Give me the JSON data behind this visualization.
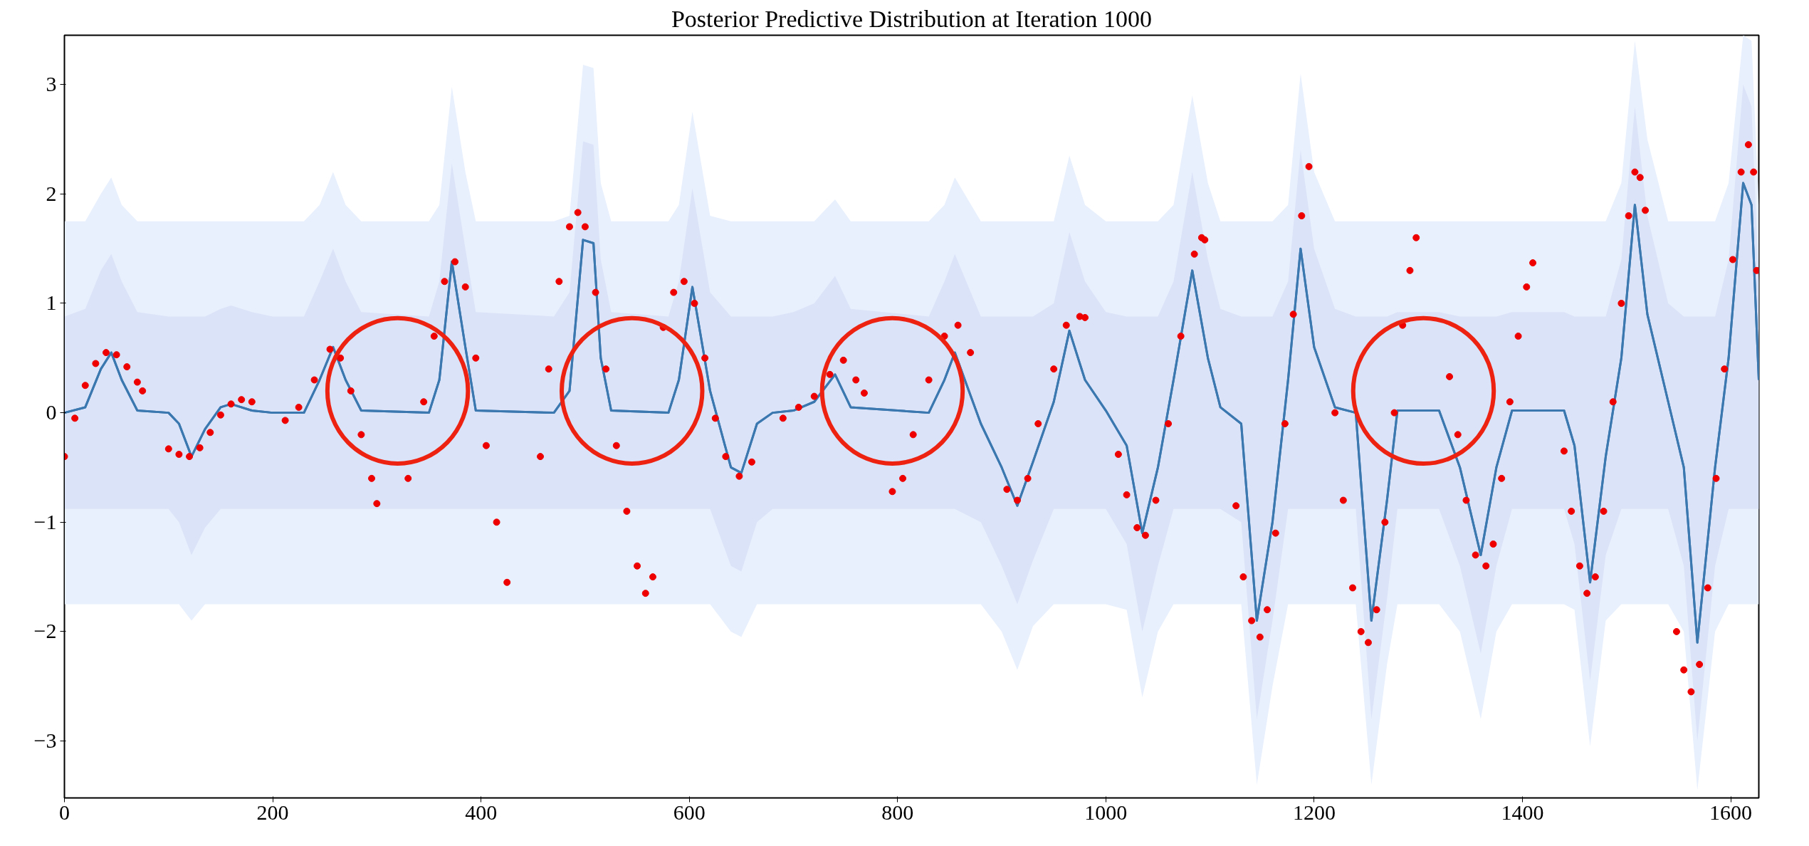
{
  "chart_data": {
    "type": "line",
    "title": "Posterior Predictive Distribution at Iteration 1000",
    "xlim": [
      0,
      1627
    ],
    "ylim": [
      -3.52,
      3.45
    ],
    "xticks": [
      0,
      200,
      400,
      600,
      800,
      1000,
      1200,
      1400,
      1600
    ],
    "yticks": [
      -3,
      -2,
      -1,
      0,
      1,
      2,
      3
    ],
    "grid": false,
    "x": [
      0,
      20,
      35,
      45,
      55,
      70,
      100,
      110,
      122,
      135,
      150,
      160,
      180,
      200,
      230,
      245,
      258,
      270,
      285,
      350,
      360,
      372,
      385,
      395,
      470,
      485,
      498,
      508,
      515,
      525,
      580,
      590,
      603,
      620,
      640,
      650,
      665,
      680,
      700,
      720,
      740,
      755,
      830,
      845,
      855,
      880,
      900,
      915,
      930,
      950,
      965,
      980,
      1000,
      1020,
      1035,
      1050,
      1065,
      1083,
      1098,
      1110,
      1130,
      1145,
      1160,
      1175,
      1187,
      1200,
      1220,
      1240,
      1255,
      1270,
      1280,
      1320,
      1340,
      1360,
      1375,
      1390,
      1440,
      1450,
      1465,
      1480,
      1495,
      1508,
      1520,
      1540,
      1555,
      1568,
      1585,
      1598,
      1612,
      1620,
      1627
    ],
    "series": [
      {
        "color": "#3b78b0",
        "values": [
          0,
          0.05,
          0.4,
          0.55,
          0.3,
          0.02,
          0,
          -0.1,
          -0.4,
          -0.15,
          0.05,
          0.08,
          0.02,
          0,
          0,
          0.3,
          0.6,
          0.3,
          0.02,
          0,
          0.3,
          1.38,
          0.6,
          0.02,
          0,
          0.2,
          1.58,
          1.55,
          0.5,
          0.02,
          0,
          0.3,
          1.15,
          0.2,
          -0.5,
          -0.55,
          -0.1,
          0,
          0.02,
          0.1,
          0.35,
          0.05,
          0,
          0.3,
          0.55,
          -0.1,
          -0.5,
          -0.85,
          -0.45,
          0.1,
          0.75,
          0.3,
          0.02,
          -0.3,
          -1.1,
          -0.5,
          0.3,
          1.3,
          0.5,
          0.05,
          -0.1,
          -1.9,
          -1.0,
          0.3,
          1.5,
          0.6,
          0.05,
          0,
          -1.9,
          -0.8,
          0.02,
          0.02,
          -0.5,
          -1.3,
          -0.5,
          0.02,
          0.02,
          -0.3,
          -1.55,
          -0.4,
          0.5,
          1.9,
          0.9,
          0.1,
          -0.5,
          -2.1,
          -0.5,
          0.5,
          2.1,
          1.9,
          0.3
        ],
        "lower": [
          -1.75,
          -1.75,
          -1.75,
          -1.75,
          -1.75,
          -1.75,
          -1.75,
          -1.75,
          -1.9,
          -1.75,
          -1.75,
          -1.75,
          -1.75,
          -1.75,
          -1.75,
          -1.75,
          -1.75,
          -1.75,
          -1.75,
          -1.75,
          -1.75,
          -1.75,
          -1.75,
          -1.75,
          -1.75,
          -1.75,
          -1.75,
          -1.75,
          -1.75,
          -1.75,
          -1.75,
          -1.75,
          -1.75,
          -1.75,
          -2.0,
          -2.05,
          -1.75,
          -1.75,
          -1.75,
          -1.75,
          -1.75,
          -1.75,
          -1.75,
          -1.75,
          -1.75,
          -1.75,
          -2.0,
          -2.35,
          -1.95,
          -1.75,
          -1.75,
          -1.75,
          -1.75,
          -1.8,
          -2.6,
          -2.0,
          -1.75,
          -1.75,
          -1.75,
          -1.75,
          -1.75,
          -3.4,
          -2.5,
          -1.75,
          -1.75,
          -1.75,
          -1.75,
          -1.75,
          -3.4,
          -2.3,
          -1.75,
          -1.75,
          -2.0,
          -2.8,
          -2.0,
          -1.75,
          -1.75,
          -1.8,
          -3.05,
          -1.9,
          -1.75,
          -1.75,
          -1.75,
          -1.75,
          -2.0,
          -3.45,
          -2.0,
          -1.75,
          -1.75,
          -1.75,
          -1.75
        ],
        "upper": [
          1.75,
          1.75,
          2.0,
          2.15,
          1.9,
          1.75,
          1.75,
          1.75,
          1.75,
          1.75,
          1.75,
          1.75,
          1.75,
          1.75,
          1.75,
          1.9,
          2.2,
          1.9,
          1.75,
          1.75,
          1.9,
          2.98,
          2.2,
          1.75,
          1.75,
          1.8,
          3.18,
          3.15,
          2.1,
          1.75,
          1.75,
          1.9,
          2.75,
          1.8,
          1.75,
          1.75,
          1.75,
          1.75,
          1.75,
          1.75,
          1.95,
          1.75,
          1.75,
          1.9,
          2.15,
          1.75,
          1.75,
          1.75,
          1.75,
          1.75,
          2.35,
          1.9,
          1.75,
          1.75,
          1.75,
          1.75,
          1.9,
          2.9,
          2.1,
          1.75,
          1.75,
          1.75,
          1.75,
          1.9,
          3.1,
          2.2,
          1.75,
          1.75,
          1.75,
          1.75,
          1.75,
          1.75,
          1.75,
          1.75,
          1.75,
          1.75,
          1.75,
          1.75,
          1.75,
          1.75,
          2.1,
          3.4,
          2.5,
          1.75,
          1.75,
          1.75,
          1.75,
          2.1,
          3.45,
          3.4,
          1.9
        ]
      },
      {
        "color": "#3b78b0",
        "values": [
          0,
          0.05,
          0.4,
          0.55,
          0.3,
          0.02,
          0,
          -0.1,
          -0.4,
          -0.15,
          0.05,
          0.08,
          0.02,
          0,
          0,
          0.3,
          0.6,
          0.3,
          0.02,
          0,
          0.3,
          1.38,
          0.6,
          0.02,
          0,
          0.2,
          1.58,
          1.55,
          0.5,
          0.02,
          0,
          0.3,
          1.15,
          0.2,
          -0.5,
          -0.55,
          -0.1,
          0,
          0.02,
          0.1,
          0.35,
          0.05,
          0,
          0.3,
          0.55,
          -0.1,
          -0.5,
          -0.85,
          -0.45,
          0.1,
          0.75,
          0.3,
          0.02,
          -0.3,
          -1.1,
          -0.5,
          0.3,
          1.3,
          0.5,
          0.05,
          -0.1,
          -1.9,
          -1.0,
          0.3,
          1.5,
          0.6,
          0.05,
          0,
          -1.9,
          -0.8,
          0.02,
          0.02,
          -0.5,
          -1.3,
          -0.5,
          0.02,
          0.02,
          -0.3,
          -1.55,
          -0.4,
          0.5,
          1.9,
          0.9,
          0.1,
          -0.5,
          -2.1,
          -0.5,
          0.5,
          2.1,
          1.9,
          0.3
        ],
        "lower": [
          -0.88,
          -0.88,
          -0.88,
          -0.88,
          -0.88,
          -0.88,
          -0.88,
          -1.0,
          -1.3,
          -1.05,
          -0.88,
          -0.88,
          -0.88,
          -0.88,
          -0.88,
          -0.88,
          -0.88,
          -0.88,
          -0.88,
          -0.88,
          -0.88,
          -0.88,
          -0.88,
          -0.88,
          -0.88,
          -0.88,
          -0.88,
          -0.88,
          -0.88,
          -0.88,
          -0.88,
          -0.88,
          -0.88,
          -0.88,
          -1.4,
          -1.45,
          -1.0,
          -0.88,
          -0.88,
          -0.88,
          -0.88,
          -0.88,
          -0.88,
          -0.88,
          -0.88,
          -1.0,
          -1.4,
          -1.75,
          -1.35,
          -0.88,
          -0.88,
          -0.88,
          -0.88,
          -1.2,
          -2.0,
          -1.4,
          -0.88,
          -0.88,
          -0.88,
          -0.88,
          -1.0,
          -2.8,
          -1.9,
          -0.88,
          -0.88,
          -0.88,
          -0.88,
          -0.88,
          -2.8,
          -1.7,
          -0.88,
          -0.88,
          -1.4,
          -2.2,
          -1.4,
          -0.88,
          -0.88,
          -1.2,
          -2.45,
          -1.3,
          -0.88,
          -0.88,
          -0.88,
          -0.88,
          -1.4,
          -3.0,
          -1.4,
          -0.88,
          -0.88,
          -0.88,
          -0.88
        ],
        "upper": [
          0.88,
          0.95,
          1.3,
          1.45,
          1.2,
          0.92,
          0.88,
          0.88,
          0.88,
          0.88,
          0.95,
          0.98,
          0.92,
          0.88,
          0.88,
          1.2,
          1.5,
          1.2,
          0.92,
          0.88,
          1.2,
          2.28,
          1.5,
          0.92,
          0.88,
          1.1,
          2.48,
          2.45,
          1.4,
          0.92,
          0.88,
          1.2,
          2.05,
          1.1,
          0.88,
          0.88,
          0.88,
          0.88,
          0.92,
          1.0,
          1.25,
          0.95,
          0.88,
          1.2,
          1.45,
          0.88,
          0.88,
          0.88,
          0.88,
          1.0,
          1.65,
          1.2,
          0.92,
          0.88,
          0.88,
          0.88,
          1.2,
          2.2,
          1.4,
          0.95,
          0.88,
          0.88,
          0.88,
          1.2,
          2.4,
          1.5,
          0.95,
          0.88,
          0.88,
          0.88,
          0.92,
          0.92,
          0.88,
          0.88,
          0.88,
          0.92,
          0.92,
          0.88,
          0.88,
          0.88,
          1.4,
          2.8,
          1.8,
          1.0,
          0.88,
          0.88,
          0.88,
          1.4,
          3.0,
          2.8,
          1.2
        ]
      },
      {
        "type": "scatter",
        "color": "#ee0000",
        "marker": "circle",
        "x": [
          0,
          10,
          20,
          30,
          40,
          50,
          60,
          70,
          75,
          100,
          110,
          120,
          130,
          140,
          150,
          160,
          170,
          180,
          212,
          225,
          240,
          255,
          265,
          275,
          285,
          295,
          300,
          330,
          345,
          355,
          365,
          375,
          385,
          395,
          405,
          415,
          425,
          457,
          465,
          475,
          485,
          493,
          500,
          510,
          520,
          530,
          540,
          550,
          558,
          565,
          575,
          585,
          595,
          605,
          615,
          625,
          635,
          648,
          660,
          690,
          705,
          720,
          735,
          748,
          760,
          768,
          795,
          805,
          815,
          830,
          845,
          858,
          870,
          905,
          915,
          925,
          935,
          950,
          962,
          975,
          980,
          1012,
          1020,
          1030,
          1038,
          1048,
          1060,
          1072,
          1085,
          1092,
          1095,
          1125,
          1132,
          1140,
          1148,
          1155,
          1163,
          1172,
          1180,
          1188,
          1195,
          1220,
          1228,
          1237,
          1245,
          1252,
          1260,
          1268,
          1277,
          1285,
          1292,
          1298,
          1330,
          1338,
          1346,
          1355,
          1365,
          1372,
          1380,
          1388,
          1396,
          1404,
          1410,
          1440,
          1447,
          1455,
          1462,
          1470,
          1478,
          1487,
          1495,
          1502,
          1508,
          1513,
          1518,
          1548,
          1555,
          1562,
          1570,
          1578,
          1586,
          1594,
          1602,
          1610,
          1617,
          1622,
          1625
        ],
        "values": [
          -0.4,
          -0.05,
          0.25,
          0.45,
          0.55,
          0.53,
          0.42,
          0.28,
          0.2,
          -0.33,
          -0.38,
          -0.4,
          -0.32,
          -0.18,
          -0.02,
          0.08,
          0.12,
          0.1,
          -0.07,
          0.05,
          0.3,
          0.58,
          0.5,
          0.2,
          -0.2,
          -0.6,
          -0.83,
          -0.6,
          0.1,
          0.7,
          1.2,
          1.38,
          1.15,
          0.5,
          -0.3,
          -1.0,
          -1.55,
          -0.4,
          0.4,
          1.2,
          1.7,
          1.83,
          1.7,
          1.1,
          0.4,
          -0.3,
          -0.9,
          -1.4,
          -1.65,
          -1.5,
          0.78,
          1.1,
          1.2,
          1.0,
          0.5,
          -0.05,
          -0.4,
          -0.58,
          -0.45,
          -0.05,
          0.05,
          0.15,
          0.35,
          0.48,
          0.3,
          0.18,
          -0.72,
          -0.6,
          -0.2,
          0.3,
          0.7,
          0.8,
          0.55,
          -0.7,
          -0.8,
          -0.6,
          -0.1,
          0.4,
          0.8,
          0.88,
          0.87,
          -0.38,
          -0.75,
          -1.05,
          -1.12,
          -0.8,
          -0.1,
          0.7,
          1.45,
          1.6,
          1.58,
          -0.85,
          -1.5,
          -1.9,
          -2.05,
          -1.8,
          -1.1,
          -0.1,
          0.9,
          1.8,
          2.25,
          0,
          -0.8,
          -1.6,
          -2.0,
          -2.1,
          -1.8,
          -1.0,
          0,
          0.8,
          1.3,
          1.6,
          0.33,
          -0.2,
          -0.8,
          -1.3,
          -1.4,
          -1.2,
          -0.6,
          0.1,
          0.7,
          1.15,
          1.37,
          -0.35,
          -0.9,
          -1.4,
          -1.65,
          -1.5,
          -0.9,
          0.1,
          1.0,
          1.8,
          2.2,
          2.15,
          1.85,
          -2.0,
          -2.35,
          -2.55,
          -2.3,
          -1.6,
          -0.6,
          0.4,
          1.4,
          2.2,
          2.45,
          2.2,
          1.3
        ]
      }
    ]
  }
}
